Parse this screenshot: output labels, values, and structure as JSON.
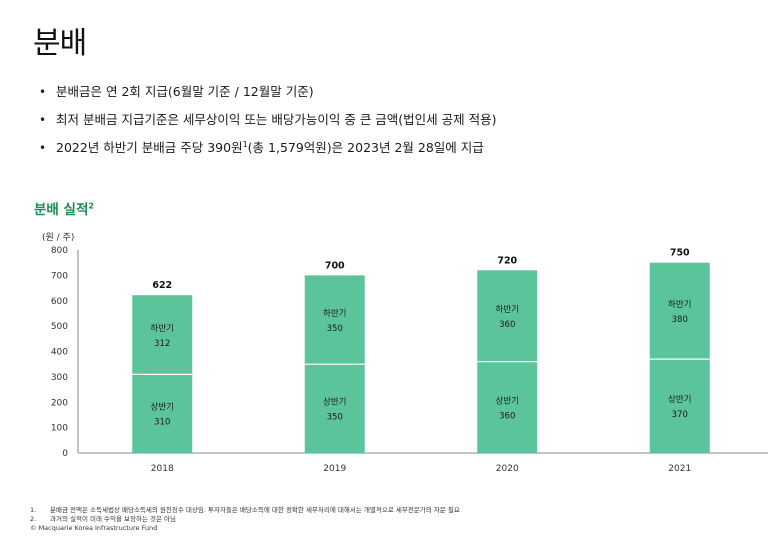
{
  "page": {
    "title": "분배",
    "bullets": [
      {
        "text": "분배금은 연 2회 지급(6월말 기준 / 12월말 기준)",
        "sup": ""
      },
      {
        "text": "최저 분배금 지급기준은 세무상이익 또는 배당가능이익 중 큰 금액(법인세 공제 적용)",
        "sup": ""
      },
      {
        "text": "2022년 하반기 분배금 주당 390원",
        "sup": "1",
        "tail": "(총 1,579억원)은 2023년 2월 28일에 지급"
      }
    ],
    "section_title": "분배 실적",
    "section_sup": "2",
    "unit": "(원 / 주)"
  },
  "chart_data": {
    "type": "bar",
    "stacked": true,
    "categories": [
      "2018",
      "2019",
      "2020",
      "2021"
    ],
    "series": [
      {
        "name": "상반기",
        "values": [
          310,
          350,
          360,
          370
        ]
      },
      {
        "name": "하반기",
        "values": [
          312,
          350,
          360,
          380
        ]
      }
    ],
    "totals": [
      622,
      700,
      720,
      750
    ],
    "ylim": [
      0,
      800
    ],
    "yticks": [
      0,
      100,
      200,
      300,
      400,
      500,
      600,
      700,
      800
    ],
    "ylabel": "(원 / 주)",
    "colors": {
      "bar": "#5cc49a",
      "divider": "#ffffff",
      "axis": "#888888"
    }
  },
  "footnotes": [
    {
      "num": "1.",
      "text": "분배금 전액은 소득세법상 배당소득세의 원천징수 대상임. 투자자들은 배당소득에 대한 정확한 세무처리에 대해서는 개별적으로 세무전문가의 자문 필요"
    },
    {
      "num": "2.",
      "text": "과거의 실적이 미래 수익을 보장하는 것은 아님"
    }
  ],
  "copyright": "© Macquarie Korea Infrastructure Fund"
}
